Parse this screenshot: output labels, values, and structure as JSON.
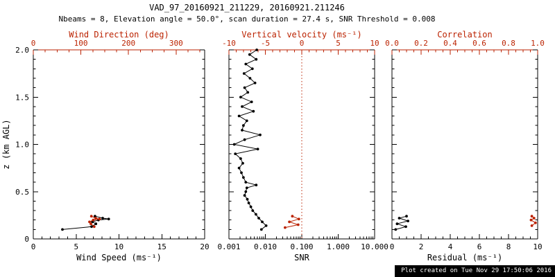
{
  "header": {
    "title": "VAD_97_20160921_211229, 20160921.211246",
    "subtitle": "Nbeams = 8, Elevation angle = 50.0°, scan duration = 27.4 s, SNR Threshold = 0.008"
  },
  "footer": {
    "created": "Plot created on Tue Nov 29 17:50:06 2016"
  },
  "colors": {
    "primary": "#000000",
    "secondary": "#bb2200",
    "background": "#ffffff"
  },
  "chart_data": [
    {
      "type": "scatter",
      "id": "wind-panel",
      "ylabel": "z (km AGL)",
      "ylim": [
        0,
        2
      ],
      "yticks": [
        0,
        0.5,
        1.0,
        1.5,
        2.0
      ],
      "ytick_labels": [
        "0",
        "0.5",
        "1.0",
        "1.5",
        "2.0"
      ],
      "show_ytick_labels": true,
      "bottom_axis": {
        "label": "Wind Speed (ms⁻¹)",
        "scale": "linear",
        "lim": [
          0,
          20
        ],
        "ticks": [
          0,
          5,
          10,
          15,
          20
        ],
        "tick_labels": [
          "0",
          "5",
          "10",
          "15",
          "20"
        ],
        "minor_step": 1
      },
      "top_axis": {
        "label": "Wind Direction (deg)",
        "scale": "linear",
        "lim": [
          0,
          360
        ],
        "ticks": [
          0,
          100,
          200,
          300
        ],
        "tick_labels": [
          "0",
          "100",
          "200",
          "300"
        ],
        "minor_step": 25
      },
      "series": [
        {
          "name": "wind-speed",
          "axis": "bottom",
          "color": "#000000",
          "points": [
            [
              3.4,
              0.1
            ],
            [
              6.8,
              0.13
            ],
            [
              7.3,
              0.16
            ],
            [
              6.9,
              0.18
            ],
            [
              7.6,
              0.2
            ],
            [
              8.8,
              0.21
            ],
            [
              8.1,
              0.22
            ],
            [
              7.2,
              0.24
            ]
          ]
        },
        {
          "name": "wind-direction",
          "axis": "top",
          "color": "#bb2200",
          "points": [
            [
              128,
              0.13
            ],
            [
              121,
              0.16
            ],
            [
              118,
              0.18
            ],
            [
              126,
              0.2
            ],
            [
              139,
              0.21
            ],
            [
              131,
              0.22
            ],
            [
              122,
              0.24
            ]
          ]
        }
      ]
    },
    {
      "type": "scatter",
      "id": "snr-panel",
      "ylabel": "",
      "ylim": [
        0,
        2
      ],
      "yticks": [
        0,
        0.5,
        1.0,
        1.5,
        2.0
      ],
      "ytick_labels": [
        "0",
        "0.5",
        "1.0",
        "1.5",
        "2.0"
      ],
      "show_ytick_labels": false,
      "bottom_axis": {
        "label": "SNR",
        "scale": "log",
        "lim": [
          0.001,
          10
        ],
        "ticks": [
          0.001,
          0.01,
          0.1,
          1,
          10
        ],
        "tick_labels": [
          "0.001",
          "0.010",
          "0.100",
          "1.000",
          "10.000"
        ]
      },
      "top_axis": {
        "label": "Vertical velocity (ms⁻¹)",
        "scale": "linear",
        "lim": [
          -10,
          10
        ],
        "ticks": [
          -10,
          -5,
          0,
          5,
          10
        ],
        "tick_labels": [
          "-10",
          "-5",
          "0",
          "5",
          "10"
        ],
        "minor_step": 1
      },
      "ref_line": {
        "axis": "top",
        "value": 0,
        "style": "dotted",
        "color": "#bb2200"
      },
      "series": [
        {
          "name": "snr",
          "axis": "bottom",
          "color": "#000000",
          "points": [
            [
              0.0058,
              2.0
            ],
            [
              0.0037,
              1.95
            ],
            [
              0.0056,
              1.9
            ],
            [
              0.0029,
              1.85
            ],
            [
              0.0044,
              1.8
            ],
            [
              0.0026,
              1.75
            ],
            [
              0.0038,
              1.7
            ],
            [
              0.0052,
              1.65
            ],
            [
              0.0027,
              1.6
            ],
            [
              0.0033,
              1.55
            ],
            [
              0.0021,
              1.5
            ],
            [
              0.0042,
              1.45
            ],
            [
              0.0023,
              1.4
            ],
            [
              0.0047,
              1.35
            ],
            [
              0.0019,
              1.3
            ],
            [
              0.0031,
              1.25
            ],
            [
              0.0025,
              1.2
            ],
            [
              0.0023,
              1.15
            ],
            [
              0.0072,
              1.1
            ],
            [
              0.0027,
              1.05
            ],
            [
              0.0014,
              1.0
            ],
            [
              0.0062,
              0.95
            ],
            [
              0.0015,
              0.9
            ],
            [
              0.0021,
              0.85
            ],
            [
              0.0024,
              0.8
            ],
            [
              0.0019,
              0.75
            ],
            [
              0.0022,
              0.7
            ],
            [
              0.0025,
              0.65
            ],
            [
              0.0029,
              0.6
            ],
            [
              0.0056,
              0.57
            ],
            [
              0.0031,
              0.54
            ],
            [
              0.0029,
              0.5
            ],
            [
              0.0027,
              0.46
            ],
            [
              0.0032,
              0.42
            ],
            [
              0.0035,
              0.38
            ],
            [
              0.004,
              0.34
            ],
            [
              0.0045,
              0.3
            ],
            [
              0.0055,
              0.26
            ],
            [
              0.0066,
              0.22
            ],
            [
              0.0082,
              0.18
            ],
            [
              0.0105,
              0.14
            ],
            [
              0.0078,
              0.1
            ]
          ]
        },
        {
          "name": "vertical-velocity",
          "axis": "top",
          "color": "#bb2200",
          "points": [
            [
              -2.3,
              0.12
            ],
            [
              -0.5,
              0.15
            ],
            [
              -1.7,
              0.18
            ],
            [
              -0.4,
              0.21
            ],
            [
              -1.3,
              0.24
            ]
          ]
        }
      ]
    },
    {
      "type": "scatter",
      "id": "residual-panel",
      "ylabel": "",
      "ylim": [
        0,
        2
      ],
      "yticks": [
        0,
        0.5,
        1.0,
        1.5,
        2.0
      ],
      "ytick_labels": [
        "0",
        "0.5",
        "1.0",
        "1.5",
        "2.0"
      ],
      "show_ytick_labels": false,
      "bottom_axis": {
        "label": "Residual (ms⁻¹)",
        "scale": "linear",
        "lim": [
          0,
          10
        ],
        "ticks": [
          0,
          2,
          4,
          6,
          8,
          10
        ],
        "tick_labels": [
          "0",
          "2",
          "4",
          "6",
          "8",
          "10"
        ],
        "minor_step": 0.5
      },
      "top_axis": {
        "label": "Correlation",
        "scale": "linear",
        "lim": [
          0,
          1
        ],
        "ticks": [
          0,
          0.2,
          0.4,
          0.6,
          0.8,
          1.0
        ],
        "tick_labels": [
          "0.0",
          "0.2",
          "0.4",
          "0.6",
          "0.8",
          "1.0"
        ],
        "minor_step": 0.05
      },
      "series": [
        {
          "name": "residual",
          "axis": "bottom",
          "color": "#000000",
          "points": [
            [
              0.25,
              0.1
            ],
            [
              0.95,
              0.13
            ],
            [
              0.35,
              0.16
            ],
            [
              1.1,
              0.19
            ],
            [
              0.5,
              0.22
            ],
            [
              1.0,
              0.24
            ]
          ]
        },
        {
          "name": "correlation",
          "axis": "top",
          "color": "#bb2200",
          "points": [
            [
              0.96,
              0.14
            ],
            [
              0.985,
              0.17
            ],
            [
              0.955,
              0.2
            ],
            [
              0.975,
              0.22
            ],
            [
              0.96,
              0.24
            ]
          ]
        }
      ]
    }
  ]
}
